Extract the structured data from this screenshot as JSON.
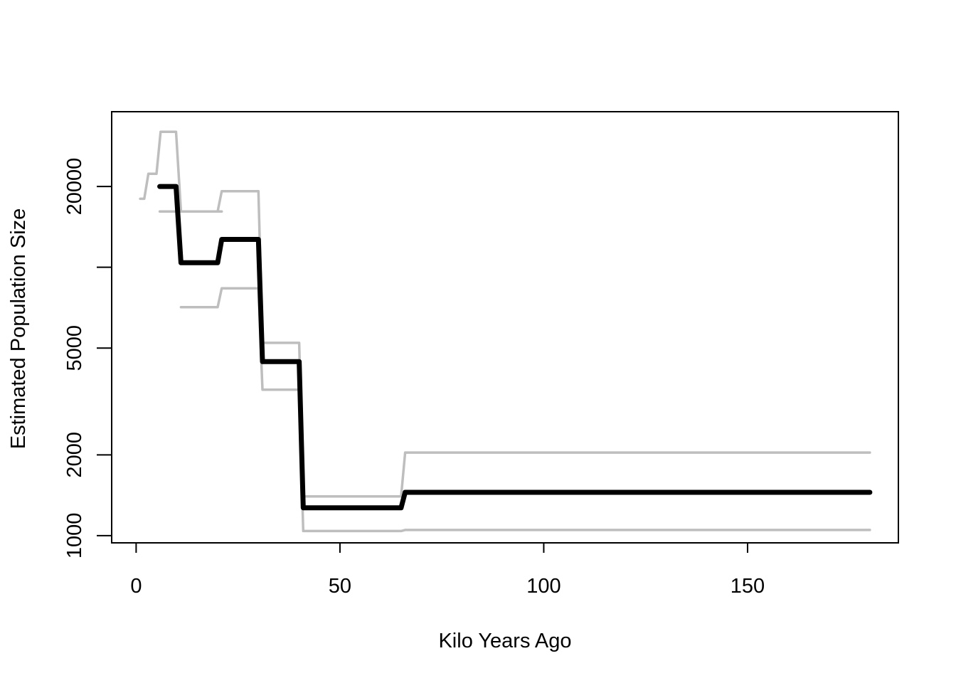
{
  "chart_data": {
    "type": "line",
    "title": "",
    "xlabel": "Kilo Years Ago",
    "ylabel": "Estimated Population Size",
    "xlim": [
      -6,
      187
    ],
    "ylim": [
      940,
      38000
    ],
    "y_scale": "log",
    "grid": false,
    "legend": "none",
    "x_ticks": [
      0,
      50,
      100,
      150
    ],
    "y_ticks": [
      1000,
      2000,
      5000,
      10000,
      20000
    ],
    "y_tick_labels": [
      "1000",
      "2000",
      "5000",
      "",
      "20000"
    ],
    "series": [
      {
        "role": "estimate",
        "color": "#000000",
        "points": [
          [
            5.8,
            20000
          ],
          [
            9.8,
            20000
          ],
          [
            11,
            10400
          ],
          [
            20,
            10400
          ],
          [
            21,
            12700
          ],
          [
            30,
            12700
          ],
          [
            31,
            4450
          ],
          [
            40,
            4450
          ],
          [
            41,
            1270
          ],
          [
            65,
            1270
          ],
          [
            66,
            1450
          ],
          [
            180,
            1450
          ]
        ]
      },
      {
        "role": "upper-bound",
        "color": "#bebebe",
        "points": [
          [
            1,
            18000
          ],
          [
            2,
            18000
          ],
          [
            3,
            22300
          ],
          [
            5,
            22300
          ],
          [
            6,
            32000
          ],
          [
            9.8,
            32000
          ],
          [
            11,
            16150
          ],
          [
            20,
            16150
          ],
          [
            21,
            19200
          ],
          [
            30,
            19200
          ],
          [
            31,
            5230
          ],
          [
            40,
            5230
          ],
          [
            41,
            1400
          ],
          [
            65,
            1400
          ],
          [
            66,
            2040
          ],
          [
            180,
            2040
          ]
        ]
      },
      {
        "role": "lower-bound",
        "color": "#bebebe",
        "points": [
          [
            5.8,
            16150
          ],
          [
            19.8,
            16150
          ],
          [
            20,
            16150
          ],
          [
            21,
            16150
          ]
        ]
      },
      {
        "role": "lower-bound",
        "color": "#bebebe",
        "points": [
          [
            11,
            7100
          ],
          [
            20,
            7100
          ],
          [
            21,
            8350
          ],
          [
            30,
            8350
          ],
          [
            31,
            3500
          ],
          [
            40,
            3500
          ],
          [
            41,
            1040
          ],
          [
            65,
            1040
          ],
          [
            66,
            1050
          ],
          [
            180,
            1050
          ]
        ]
      }
    ]
  }
}
